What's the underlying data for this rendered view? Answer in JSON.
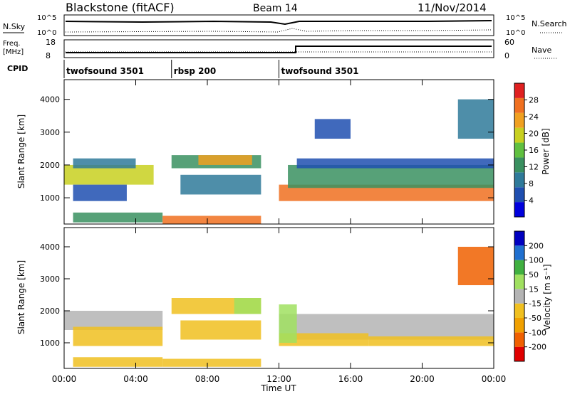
{
  "header": {
    "station": "Blackstone (fitACF)",
    "beam": "Beam 14",
    "date": "11/Nov/2014"
  },
  "nsky_panel": {
    "left_label": "N.Sky",
    "right_label": "N.Search",
    "left_ticks": [
      "10^5",
      "10^0"
    ],
    "right_ticks": [
      "10^5",
      "10^0"
    ]
  },
  "freq_panel": {
    "left_label_1": "Freq.",
    "left_label_2": "[MHz]",
    "right_label": "Nave",
    "left_ticks": [
      "18",
      "8"
    ],
    "right_ticks": [
      "60",
      "0"
    ]
  },
  "cpid": {
    "label": "CPID",
    "segments": [
      {
        "name": "twofsound 3501",
        "start_hour": 0,
        "end_hour": 6
      },
      {
        "name": "rbsp 200",
        "start_hour": 6,
        "end_hour": 12
      },
      {
        "name": "twofsound 3501",
        "start_hour": 12,
        "end_hour": 24
      }
    ]
  },
  "x_axis": {
    "label": "Time UT",
    "ticks": [
      "00:00",
      "04:00",
      "08:00",
      "12:00",
      "16:00",
      "20:00",
      "00:00"
    ]
  },
  "colors": {
    "power_scale": [
      "#0000dd",
      "#1f4fb0",
      "#2f7a9a",
      "#3a9060",
      "#60c040",
      "#c8d020",
      "#f0a020",
      "#f07020",
      "#e02020"
    ],
    "velocity_scale": [
      "#e00000",
      "#f06000",
      "#f0a000",
      "#f0c020",
      "#b4b4b4",
      "#a0e060",
      "#40b040",
      "#2070d0",
      "#0000c0"
    ]
  },
  "chart_data": [
    {
      "type": "heatmap",
      "name": "power",
      "ylabel": "Slant Range [km]",
      "yticks": [
        1000,
        2000,
        3000,
        4000
      ],
      "ylim": [
        200,
        4600
      ],
      "xlim": [
        0,
        24
      ],
      "colorbar": {
        "label": "Power [dB]",
        "ticks": [
          "4",
          "8",
          "12",
          "16",
          "20",
          "24",
          "28"
        ],
        "range": [
          0,
          32
        ]
      },
      "bands": [
        {
          "x0": 0.0,
          "x1": 5.0,
          "y0": 1400,
          "y1": 2000,
          "value": 20
        },
        {
          "x0": 0.5,
          "x1": 4.0,
          "y0": 1900,
          "y1": 2200,
          "value": 8
        },
        {
          "x0": 0.5,
          "x1": 3.5,
          "y0": 900,
          "y1": 1400,
          "value": 6
        },
        {
          "x0": 0.5,
          "x1": 5.5,
          "y0": 250,
          "y1": 550,
          "value": 12
        },
        {
          "x0": 5.5,
          "x1": 11.0,
          "y0": 200,
          "y1": 450,
          "value": 28
        },
        {
          "x0": 6.0,
          "x1": 11.0,
          "y0": 1900,
          "y1": 2300,
          "value": 14
        },
        {
          "x0": 7.5,
          "x1": 10.5,
          "y0": 2000,
          "y1": 2300,
          "value": 22
        },
        {
          "x0": 6.5,
          "x1": 11.0,
          "y0": 1100,
          "y1": 1700,
          "value": 8
        },
        {
          "x0": 12.0,
          "x1": 24.0,
          "y0": 900,
          "y1": 1400,
          "value": 26
        },
        {
          "x0": 12.5,
          "x1": 24.0,
          "y0": 1300,
          "y1": 2000,
          "value": 14
        },
        {
          "x0": 13.0,
          "x1": 24.0,
          "y0": 1900,
          "y1": 2200,
          "value": 6
        },
        {
          "x0": 14.0,
          "x1": 16.0,
          "y0": 2800,
          "y1": 3400,
          "value": 6
        },
        {
          "x0": 22.0,
          "x1": 24.0,
          "y0": 2800,
          "y1": 4000,
          "value": 8
        }
      ]
    },
    {
      "type": "heatmap",
      "name": "velocity",
      "ylabel": "Slant Range [km]",
      "yticks": [
        1000,
        2000,
        3000,
        4000
      ],
      "ylim": [
        200,
        4600
      ],
      "xlim": [
        0,
        24
      ],
      "colorbar": {
        "label": "Velocity [m s⁻¹]",
        "ticks": [
          "-200",
          "-100",
          "-50",
          "-15",
          "15",
          "50",
          "100",
          "200"
        ],
        "range": [
          -250,
          250
        ]
      },
      "bands": [
        {
          "x0": 0.0,
          "x1": 5.5,
          "y0": 1400,
          "y1": 2000,
          "value": 0
        },
        {
          "x0": 0.5,
          "x1": 5.5,
          "y0": 900,
          "y1": 1500,
          "value": -60
        },
        {
          "x0": 0.5,
          "x1": 5.5,
          "y0": 250,
          "y1": 550,
          "value": -40
        },
        {
          "x0": 5.5,
          "x1": 11.0,
          "y0": 250,
          "y1": 500,
          "value": -70
        },
        {
          "x0": 6.0,
          "x1": 11.0,
          "y0": 1900,
          "y1": 2400,
          "value": -60
        },
        {
          "x0": 9.5,
          "x1": 11.0,
          "y0": 1900,
          "y1": 2400,
          "value": 40
        },
        {
          "x0": 6.5,
          "x1": 11.0,
          "y0": 1100,
          "y1": 1700,
          "value": -30
        },
        {
          "x0": 12.0,
          "x1": 24.0,
          "y0": 1100,
          "y1": 1900,
          "value": 0
        },
        {
          "x0": 12.0,
          "x1": 17.0,
          "y0": 900,
          "y1": 1300,
          "value": -40
        },
        {
          "x0": 12.0,
          "x1": 13.0,
          "y0": 1000,
          "y1": 2200,
          "value": 40
        },
        {
          "x0": 17.0,
          "x1": 24.0,
          "y0": 900,
          "y1": 1200,
          "value": -30
        },
        {
          "x0": 22.0,
          "x1": 24.0,
          "y0": 2800,
          "y1": 4000,
          "value": -150
        }
      ]
    }
  ]
}
